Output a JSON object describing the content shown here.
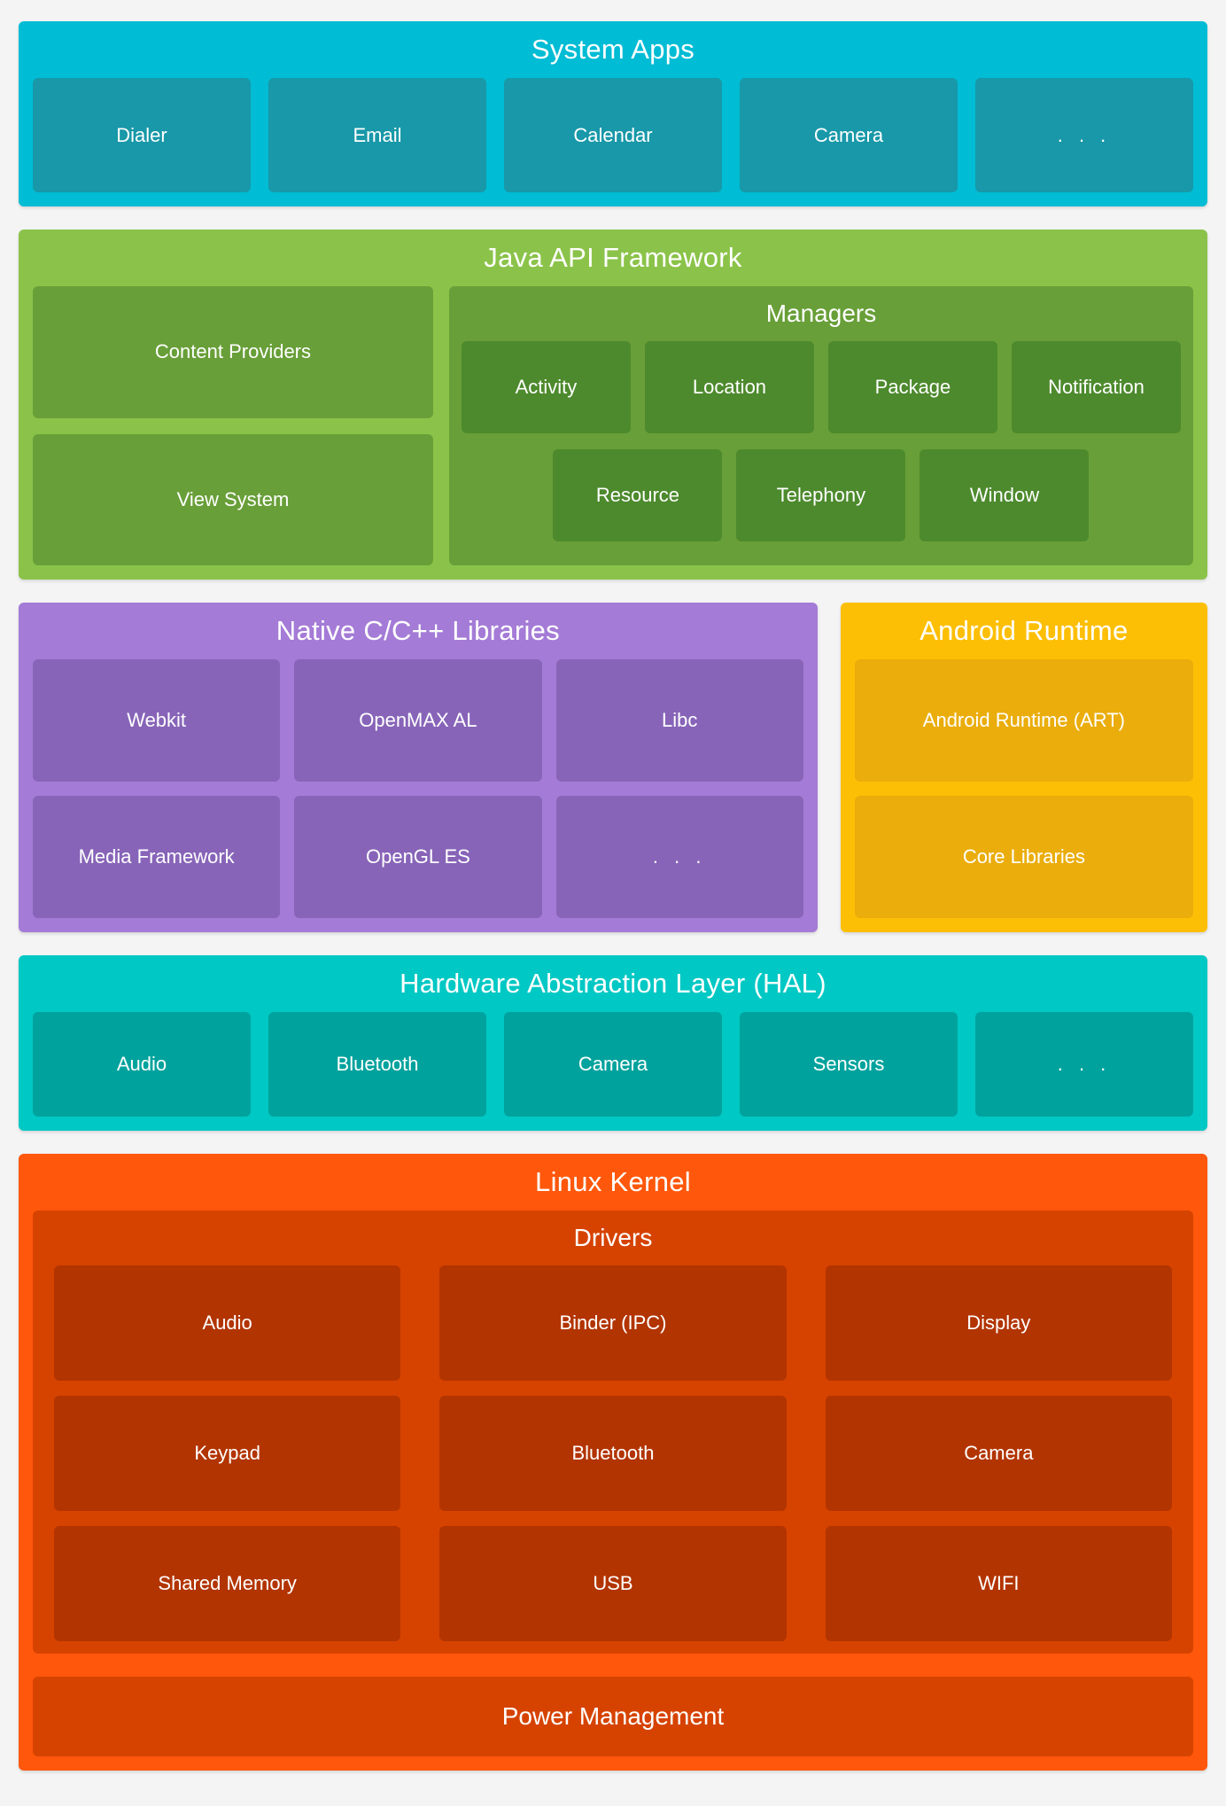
{
  "colors": {
    "page_background": "#f4f4f4",
    "system_apps_bg": "#00bcd4",
    "system_apps_box": "#1898a8",
    "java_api_bg": "#8bc34a",
    "java_api_panel": "#689f38",
    "java_api_manager_box": "#4d8a2d",
    "native_libs_bg": "#a47bd6",
    "native_libs_box": "#8764b8",
    "android_runtime_bg": "#fdbf05",
    "android_runtime_box": "#eaad0c",
    "hal_bg": "#00c8c4",
    "hal_box": "#00a29d",
    "linux_kernel_bg": "#ff570b",
    "linux_kernel_panel": "#d64300",
    "linux_kernel_box": "#b23400",
    "text": "#ffffff"
  },
  "sections": {
    "system_apps": {
      "title": "System Apps",
      "items": [
        "Dialer",
        "Email",
        "Calendar",
        "Camera",
        ". . ."
      ]
    },
    "java_api": {
      "title": "Java API Framework",
      "left_items": [
        "Content Providers",
        "View System"
      ],
      "managers": {
        "title": "Managers",
        "row1": [
          "Activity",
          "Location",
          "Package",
          "Notification"
        ],
        "row2": [
          "Resource",
          "Telephony",
          "Window"
        ]
      }
    },
    "native_libs": {
      "title": "Native C/C++ Libraries",
      "row1": [
        "Webkit",
        "OpenMAX AL",
        "Libc"
      ],
      "row2": [
        "Media Framework",
        "OpenGL ES",
        ". . ."
      ]
    },
    "android_runtime": {
      "title": "Android Runtime",
      "items": [
        "Android Runtime (ART)",
        "Core Libraries"
      ]
    },
    "hal": {
      "title": "Hardware Abstraction Layer (HAL)",
      "items": [
        "Audio",
        "Bluetooth",
        "Camera",
        "Sensors",
        ". . ."
      ]
    },
    "linux_kernel": {
      "title": "Linux Kernel",
      "drivers": {
        "title": "Drivers",
        "row1": [
          "Audio",
          "Binder (IPC)",
          "Display"
        ],
        "row2": [
          "Keypad",
          "Bluetooth",
          "Camera"
        ],
        "row3": [
          "Shared Memory",
          "USB",
          "WIFI"
        ]
      },
      "power_label": "Power Management"
    }
  }
}
